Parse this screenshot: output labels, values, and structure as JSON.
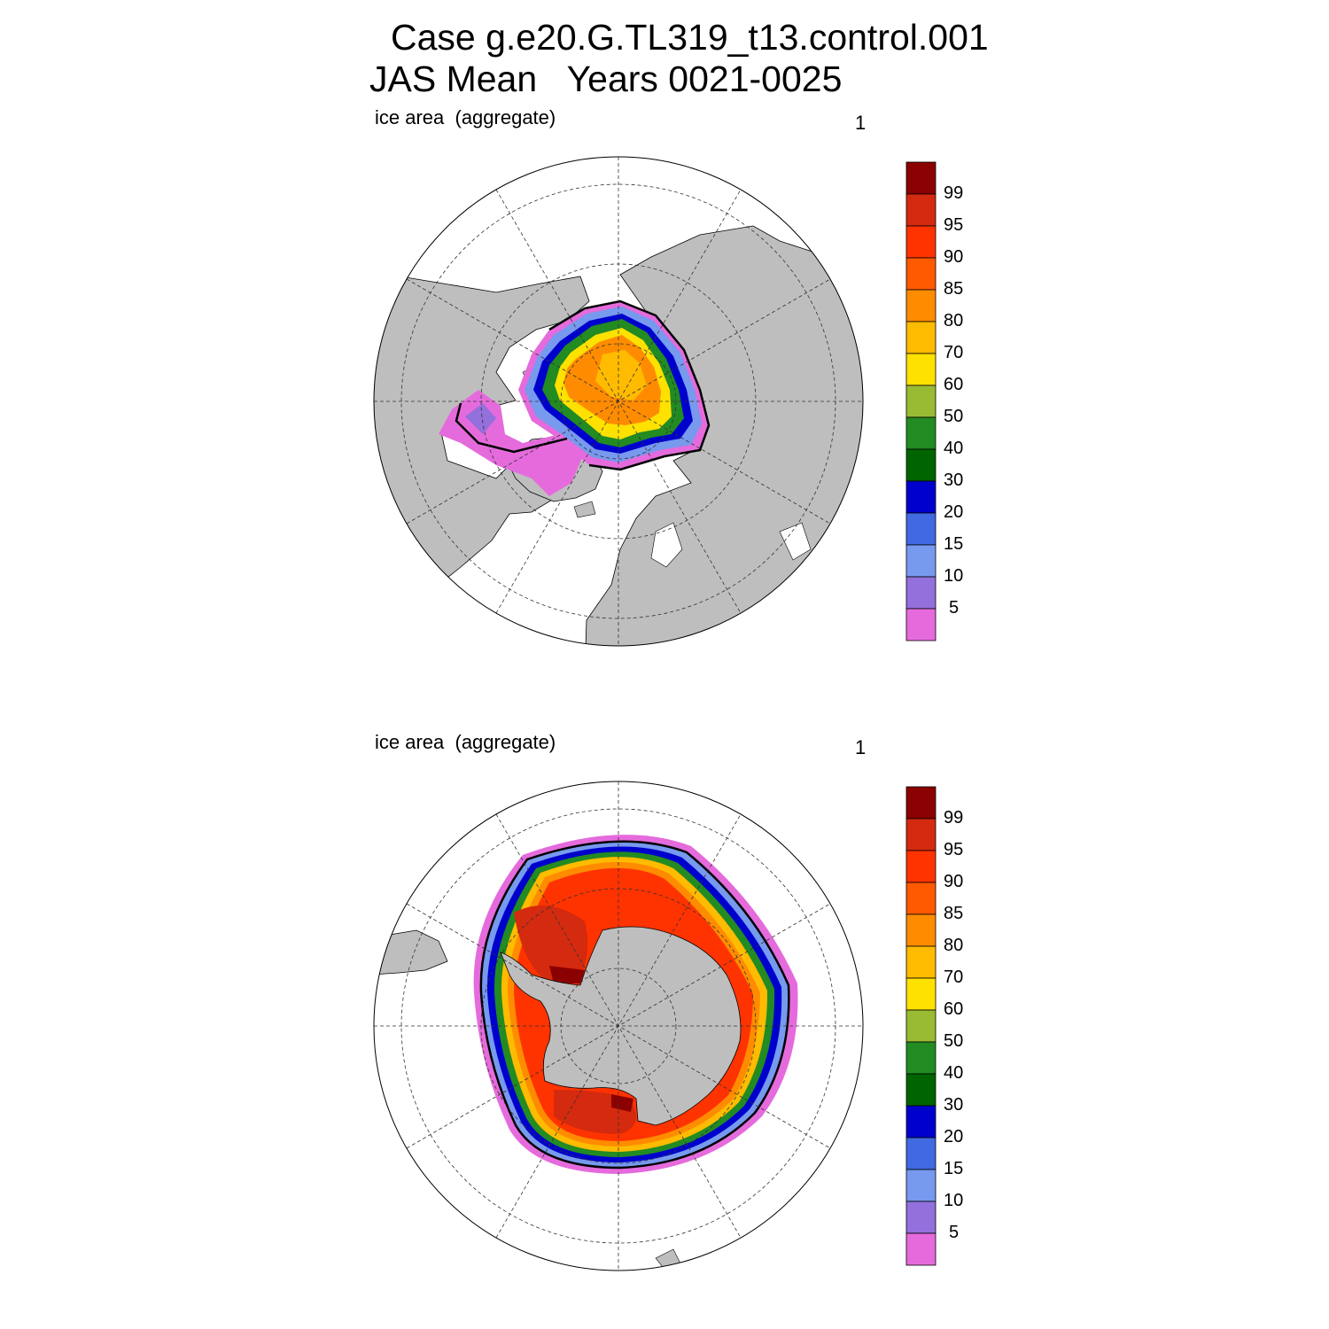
{
  "title": {
    "line1": "Case g.e20.G.TL319_t13.control.001",
    "line2": "JAS Mean   Years 0021-0025"
  },
  "panels": [
    {
      "name": "arctic",
      "label": "ice area  (aggregate)",
      "number": "1"
    },
    {
      "name": "antarctic",
      "label": "ice area  (aggregate)",
      "number": "1"
    }
  ],
  "colorbar": {
    "levels": [
      "99",
      "95",
      "90",
      "85",
      "80",
      "70",
      "60",
      "50",
      "40",
      "30",
      "20",
      "15",
      "10",
      "5"
    ],
    "colors": [
      "#8B0000",
      "#D42A0F",
      "#FF3300",
      "#FF5A00",
      "#FF8C00",
      "#FFBB00",
      "#FFE100",
      "#99BB33",
      "#228B22",
      "#006400",
      "#0000CD",
      "#4169E1",
      "#7799EE",
      "#9370DB",
      "#E56BDC"
    ]
  },
  "land_color": "#BEBEBE",
  "ocean_color": "#FFFFFF"
}
